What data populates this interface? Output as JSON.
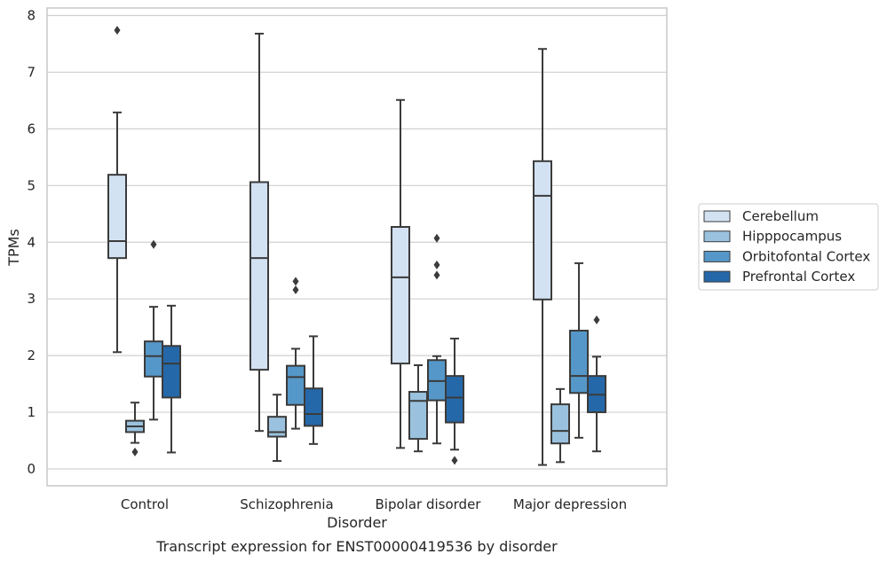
{
  "chart_data": {
    "type": "box",
    "xlabel": "Disorder",
    "ylabel": "TPMs",
    "caption": "Transcript expression for ENST00000419536 by disorder",
    "ylim": [
      -0.3,
      8.1
    ],
    "yticks": [
      "0",
      "1",
      "2",
      "3",
      "4",
      "5",
      "6",
      "7",
      "8"
    ],
    "grid": "horizontal",
    "legend_position": "right",
    "categories": [
      "Control",
      "Schizophrenia",
      "Bipolar disorder",
      "Major depression"
    ],
    "series": [
      {
        "name": "Cerebellum",
        "color": "#d2e2f3",
        "boxes": [
          {
            "q1": 3.72,
            "median": 4.02,
            "q3": 5.19,
            "whislo": 2.06,
            "whishi": 6.29,
            "fliers": [
              7.74
            ]
          },
          {
            "q1": 1.75,
            "median": 3.72,
            "q3": 5.06,
            "whislo": 0.67,
            "whishi": 7.68,
            "fliers": []
          },
          {
            "q1": 1.86,
            "median": 3.38,
            "q3": 4.27,
            "whislo": 0.37,
            "whishi": 6.51,
            "fliers": []
          },
          {
            "q1": 2.99,
            "median": 4.82,
            "q3": 5.43,
            "whislo": 0.07,
            "whishi": 7.41,
            "fliers": []
          }
        ]
      },
      {
        "name": "Hipppocampus",
        "color": "#9ac2de",
        "boxes": [
          {
            "q1": 0.65,
            "median": 0.75,
            "q3": 0.85,
            "whislo": 0.46,
            "whishi": 1.17,
            "fliers": [
              0.3
            ]
          },
          {
            "q1": 0.57,
            "median": 0.65,
            "q3": 0.92,
            "whislo": 0.14,
            "whishi": 1.31,
            "fliers": []
          },
          {
            "q1": 0.53,
            "median": 1.2,
            "q3": 1.36,
            "whislo": 0.31,
            "whishi": 1.83,
            "fliers": []
          },
          {
            "q1": 0.45,
            "median": 0.67,
            "q3": 1.14,
            "whislo": 0.12,
            "whishi": 1.41,
            "fliers": []
          }
        ]
      },
      {
        "name": "Orbitofontal Cortex",
        "color": "#5597c8",
        "boxes": [
          {
            "q1": 1.63,
            "median": 1.99,
            "q3": 2.25,
            "whislo": 0.87,
            "whishi": 2.86,
            "fliers": [
              3.96
            ]
          },
          {
            "q1": 1.13,
            "median": 1.62,
            "q3": 1.82,
            "whislo": 0.71,
            "whishi": 2.12,
            "fliers": [
              3.16,
              3.31
            ]
          },
          {
            "q1": 1.21,
            "median": 1.55,
            "q3": 1.92,
            "whislo": 0.45,
            "whishi": 1.99,
            "fliers": [
              3.42,
              3.6,
              4.07
            ]
          },
          {
            "q1": 1.34,
            "median": 1.64,
            "q3": 2.44,
            "whislo": 0.55,
            "whishi": 3.63,
            "fliers": []
          }
        ]
      },
      {
        "name": "Prefrontal Cortex",
        "color": "#2568a9",
        "boxes": [
          {
            "q1": 1.26,
            "median": 1.86,
            "q3": 2.17,
            "whislo": 0.29,
            "whishi": 2.88,
            "fliers": []
          },
          {
            "q1": 0.76,
            "median": 0.97,
            "q3": 1.42,
            "whislo": 0.44,
            "whishi": 2.34,
            "fliers": []
          },
          {
            "q1": 0.82,
            "median": 1.26,
            "q3": 1.64,
            "whislo": 0.34,
            "whishi": 2.3,
            "fliers": [
              0.15
            ]
          },
          {
            "q1": 1.0,
            "median": 1.31,
            "q3": 1.64,
            "whislo": 0.31,
            "whishi": 1.98,
            "fliers": [
              2.63
            ]
          }
        ]
      }
    ]
  }
}
